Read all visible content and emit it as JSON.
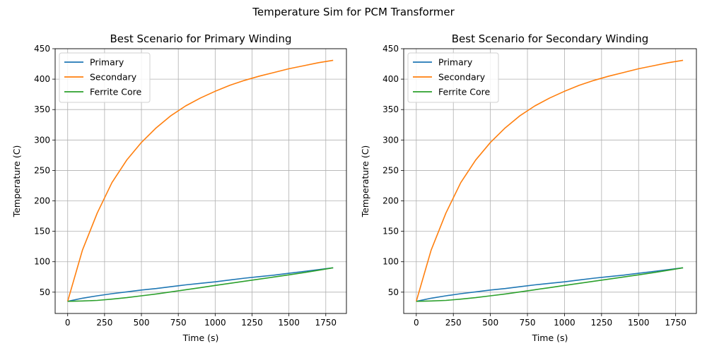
{
  "figure": {
    "suptitle": "Temperature Sim for PCM Transformer"
  },
  "chart_data": [
    {
      "type": "line",
      "title": "Best Scenario for Primary Winding",
      "xlabel": "Time (s)",
      "ylabel": "Temperature (C)",
      "xlim": [
        -85,
        1890
      ],
      "ylim": [
        15,
        450
      ],
      "xticks": [
        0,
        250,
        500,
        750,
        1000,
        1250,
        1500,
        1750
      ],
      "yticks": [
        50,
        100,
        150,
        200,
        250,
        300,
        350,
        400,
        450
      ],
      "grid": true,
      "legend_position": "top-left",
      "x": [
        0,
        100,
        200,
        300,
        400,
        500,
        600,
        700,
        800,
        900,
        1000,
        1100,
        1200,
        1300,
        1400,
        1500,
        1600,
        1700,
        1800
      ],
      "series": [
        {
          "name": "Primary",
          "color": "#1f77b4",
          "values": [
            35,
            40,
            44,
            47.5,
            50.5,
            53.5,
            56,
            59,
            62,
            64.5,
            67,
            70,
            73,
            75.5,
            78,
            81,
            84,
            87,
            90
          ]
        },
        {
          "name": "Secondary",
          "color": "#ff7f0e",
          "values": [
            35,
            119,
            180,
            230,
            267,
            296,
            320,
            340,
            356,
            369,
            380,
            390,
            398,
            405,
            411,
            417,
            422,
            427,
            431
          ]
        },
        {
          "name": "Ferrite Core",
          "color": "#2ca02c",
          "values": [
            35,
            35.5,
            36.5,
            38.5,
            41,
            44,
            47,
            50.5,
            54,
            57.5,
            61,
            64.5,
            68,
            71.5,
            75,
            78.5,
            82,
            86,
            90
          ]
        }
      ]
    },
    {
      "type": "line",
      "title": "Best Scenario for Secondary Winding",
      "xlabel": "Time (s)",
      "ylabel": "Temperature (C)",
      "xlim": [
        -85,
        1890
      ],
      "ylim": [
        15,
        450
      ],
      "xticks": [
        0,
        250,
        500,
        750,
        1000,
        1250,
        1500,
        1750
      ],
      "yticks": [
        50,
        100,
        150,
        200,
        250,
        300,
        350,
        400,
        450
      ],
      "grid": true,
      "legend_position": "top-left",
      "x": [
        0,
        100,
        200,
        300,
        400,
        500,
        600,
        700,
        800,
        900,
        1000,
        1100,
        1200,
        1300,
        1400,
        1500,
        1600,
        1700,
        1800
      ],
      "series": [
        {
          "name": "Primary",
          "color": "#1f77b4",
          "values": [
            35,
            40,
            44,
            47.5,
            50.5,
            53.5,
            56,
            59,
            62,
            64.5,
            67,
            70,
            73,
            75.5,
            78,
            81,
            84,
            87,
            90
          ]
        },
        {
          "name": "Secondary",
          "color": "#ff7f0e",
          "values": [
            35,
            119,
            180,
            230,
            267,
            296,
            320,
            340,
            356,
            369,
            380,
            390,
            398,
            405,
            411,
            417,
            422,
            427,
            431
          ]
        },
        {
          "name": "Ferrite Core",
          "color": "#2ca02c",
          "values": [
            35,
            35.5,
            36.5,
            38.5,
            41,
            44,
            47,
            50.5,
            54,
            57.5,
            61,
            64.5,
            68,
            71.5,
            75,
            78.5,
            82,
            86,
            90
          ]
        }
      ]
    }
  ]
}
